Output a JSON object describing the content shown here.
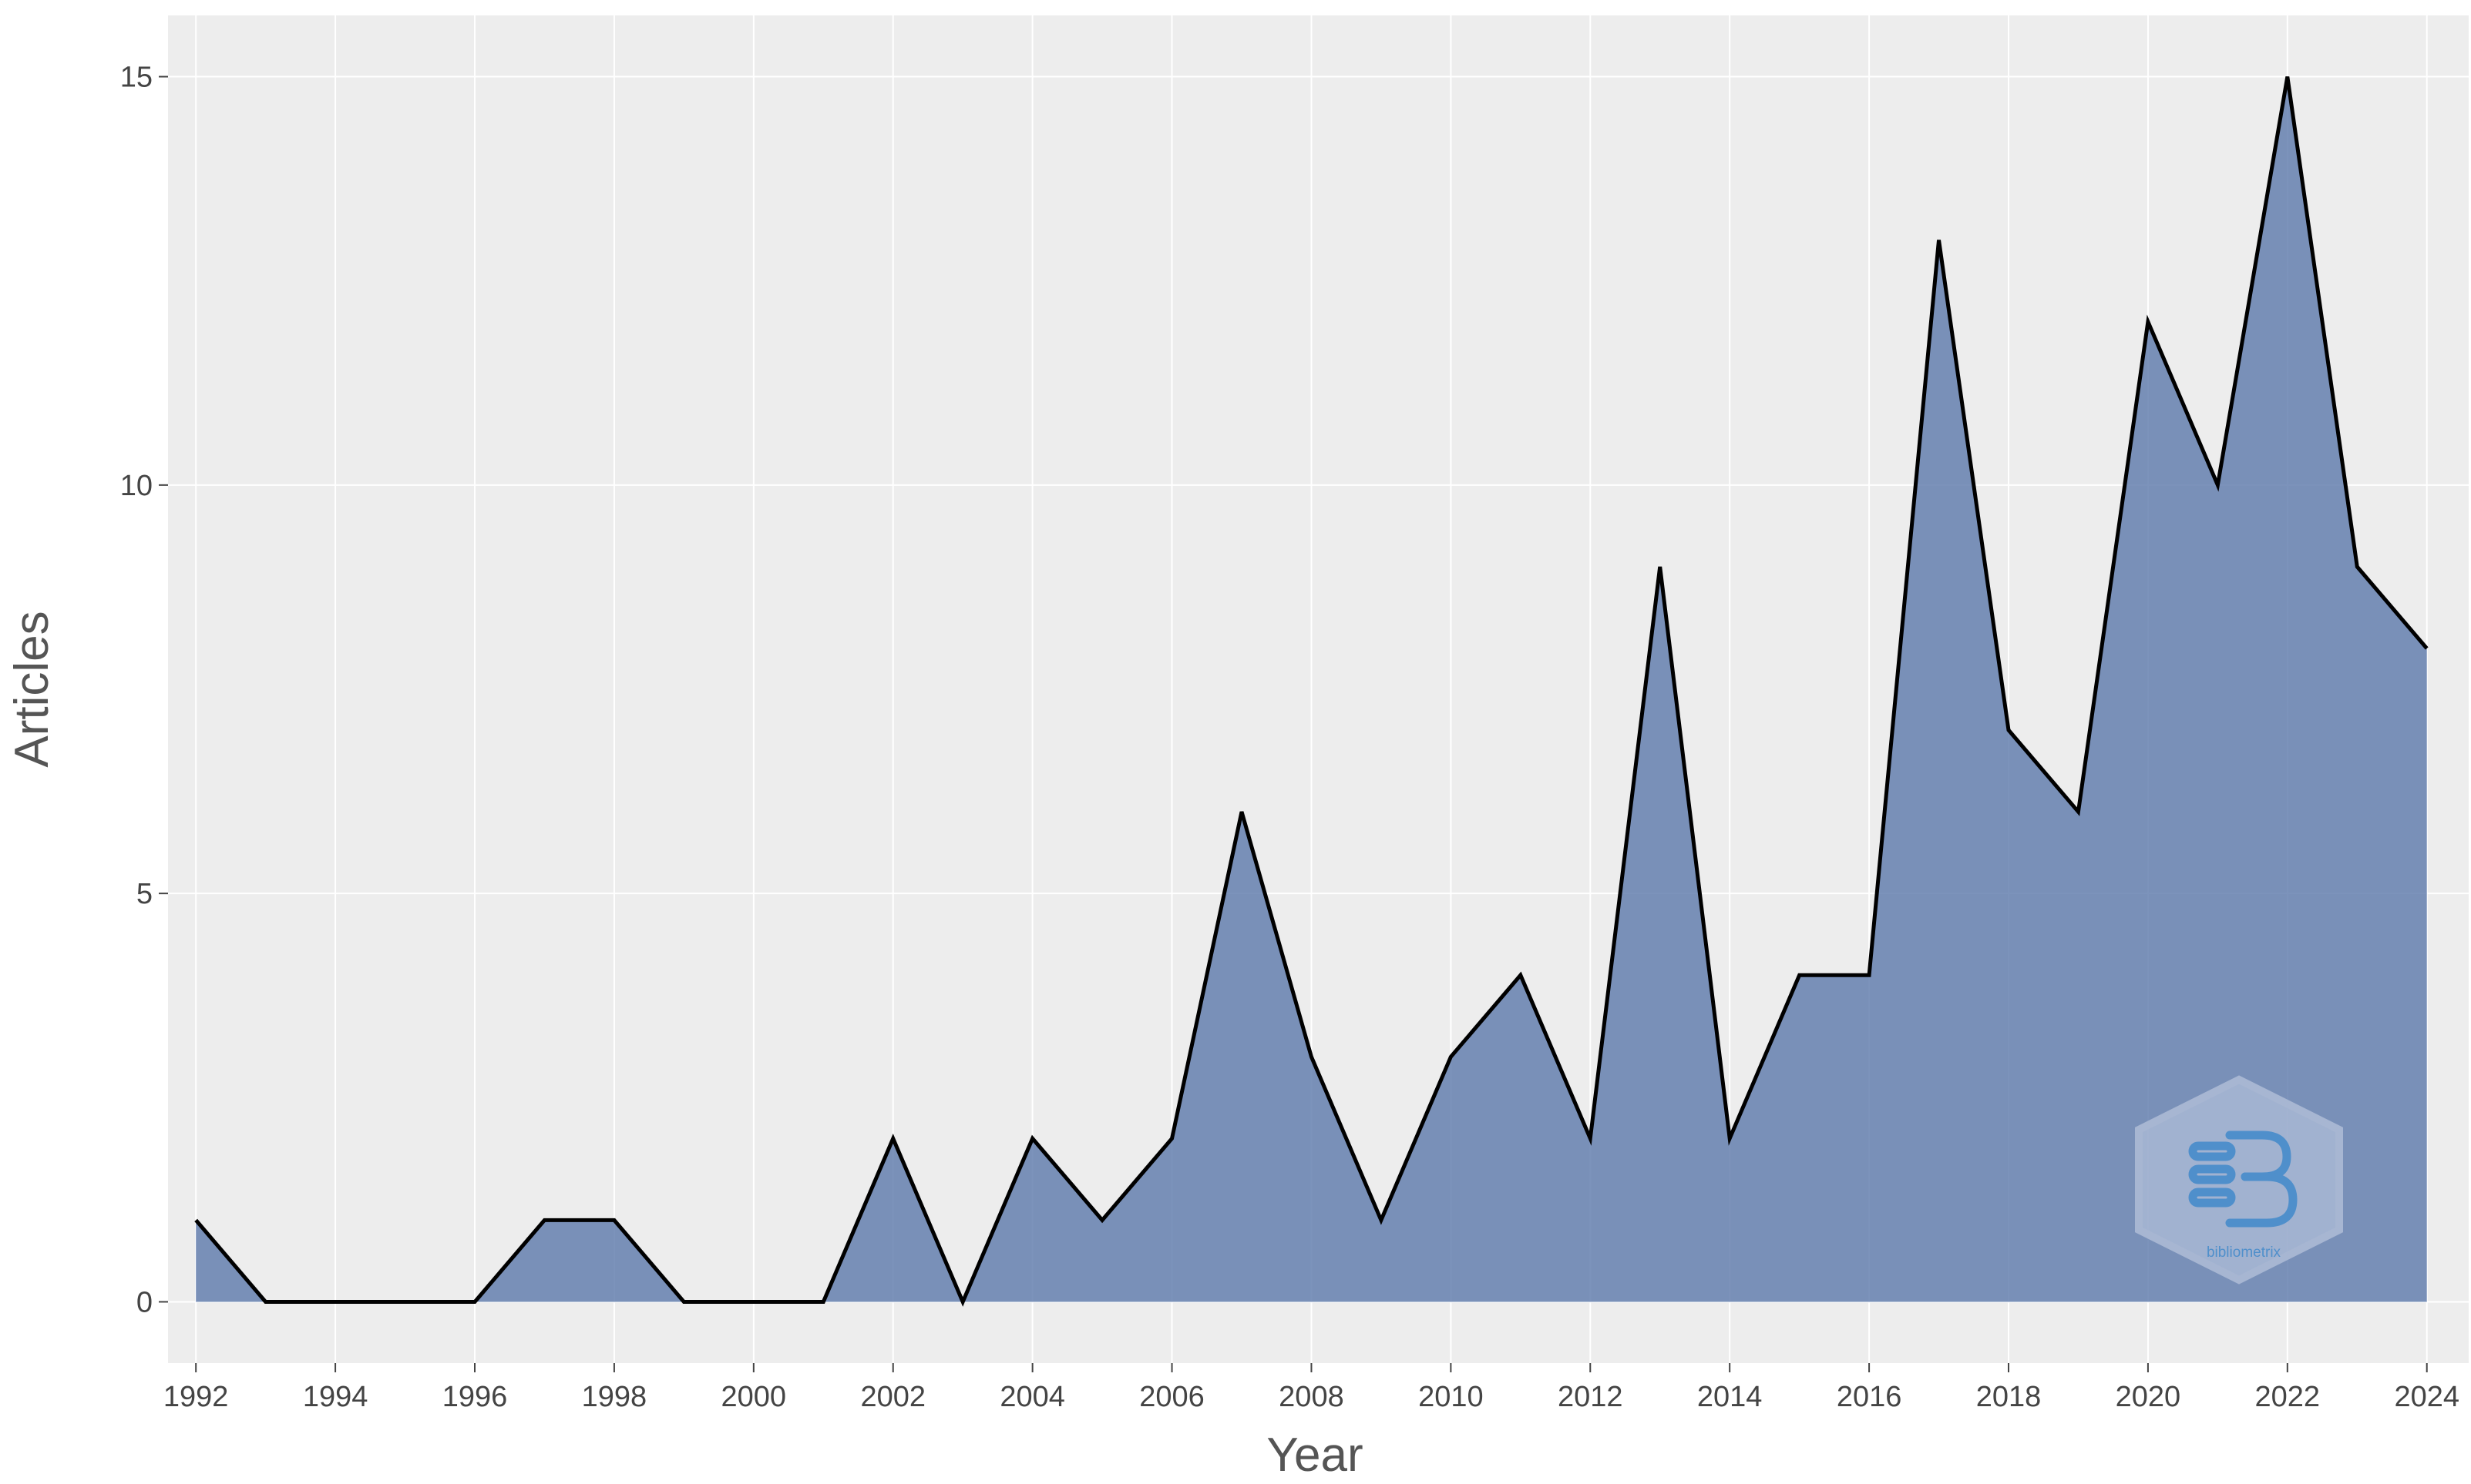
{
  "chart_data": {
    "type": "area",
    "x": [
      1992,
      1993,
      1994,
      1995,
      1996,
      1997,
      1998,
      1999,
      2000,
      2001,
      2002,
      2003,
      2004,
      2005,
      2006,
      2007,
      2008,
      2009,
      2010,
      2011,
      2012,
      2013,
      2014,
      2015,
      2016,
      2017,
      2018,
      2019,
      2020,
      2021,
      2022,
      2023,
      2024
    ],
    "values": [
      1,
      0,
      0,
      0,
      0,
      1,
      1,
      0,
      0,
      0,
      2,
      0,
      2,
      1,
      2,
      6,
      3,
      1,
      3,
      4,
      2,
      9,
      2,
      4,
      4,
      13,
      7,
      6,
      12,
      10,
      15,
      9,
      8
    ],
    "xlabel": "Year",
    "ylabel": "Articles",
    "x_ticks": [
      "1992",
      "1994",
      "1996",
      "1998",
      "2000",
      "2002",
      "2004",
      "2006",
      "2008",
      "2010",
      "2012",
      "2014",
      "2016",
      "2018",
      "2020",
      "2022",
      "2024"
    ],
    "y_ticks": [
      "0",
      "5",
      "10",
      "15"
    ],
    "xlim": [
      1991.6,
      2024.6
    ],
    "ylim": [
      -0.75,
      15.75
    ],
    "grid": true,
    "colors": {
      "fill": "#5b78aa",
      "fill_opacity": 0.8,
      "line": "#000000",
      "panel": "#ededed",
      "grid": "#ffffff"
    }
  },
  "watermark": {
    "icon": "biblioshiny-hexagon-logo",
    "text": "bibliometrix"
  }
}
